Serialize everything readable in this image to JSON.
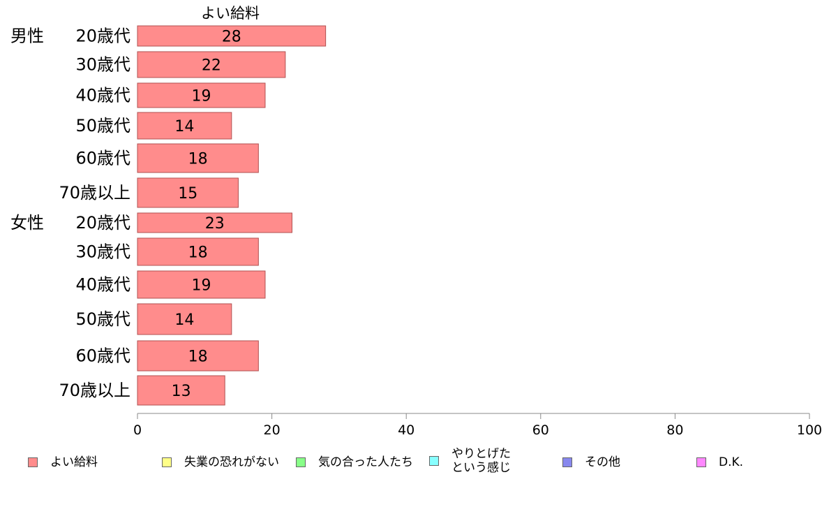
{
  "colors": {
    "bar_fill": "#ff8c8c",
    "bar_stroke": "#b05050",
    "axis": "#888888"
  },
  "chart_data": {
    "type": "bar",
    "orientation": "horizontal",
    "title": "",
    "series_header": "よい給料",
    "groups": [
      {
        "name": "男性",
        "start_index": 0
      },
      {
        "name": "女性",
        "start_index": 6
      }
    ],
    "categories": [
      "20歳代",
      "30歳代",
      "40歳代",
      "50歳代",
      "60歳代",
      "70歳以上",
      "20歳代",
      "30歳代",
      "40歳代",
      "50歳代",
      "60歳代",
      "70歳以上"
    ],
    "series": [
      {
        "name": "よい給料",
        "color": "#ff8c8c",
        "values": [
          28,
          22,
          19,
          14,
          18,
          15,
          23,
          18,
          19,
          14,
          18,
          13
        ]
      }
    ],
    "xlim": [
      0,
      100
    ],
    "xticks": [
      0,
      20,
      40,
      60,
      80,
      100
    ],
    "grid": false,
    "legend": {
      "position": "bottom",
      "entries": [
        {
          "label": "よい給料",
          "color": "#ff8c8c"
        },
        {
          "label": "失業の恐れがない",
          "color": "#ffff88"
        },
        {
          "label": "気の合った人たち",
          "color": "#88ff88"
        },
        {
          "label": "やりとげた\nという感じ",
          "color": "#88ffff"
        },
        {
          "label": "その他",
          "color": "#8888ee"
        },
        {
          "label": "D.K.",
          "color": "#ff88ff"
        }
      ]
    }
  }
}
